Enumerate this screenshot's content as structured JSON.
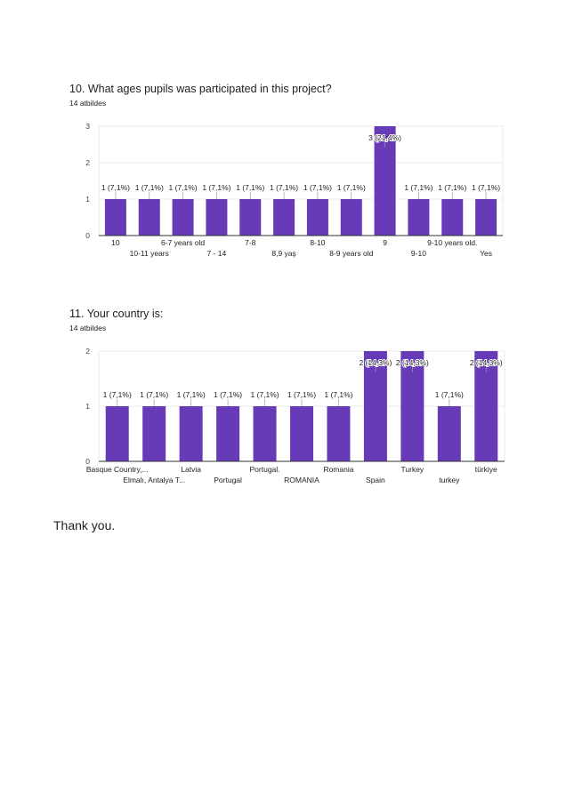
{
  "questions": [
    {
      "title": "10. What ages pupils was participated in this project?",
      "subtitle": "14 atbildes"
    },
    {
      "title": "11. Your country is:",
      "subtitle": "14 atbildes"
    }
  ],
  "footer": {
    "text": "Thank you."
  },
  "colors": {
    "bar": "#673ab7",
    "grid": "#ebebeb",
    "axis": "#333333"
  },
  "chart_data": [
    {
      "type": "bar",
      "categories": [
        "10",
        "10-11 years",
        "6-7 years old",
        "7 - 14",
        "7-8",
        "8,9 yaş",
        "8-10",
        "8-9 years old",
        "9",
        "9-10",
        "9-10 years old.",
        "Yes"
      ],
      "values": [
        1,
        1,
        1,
        1,
        1,
        1,
        1,
        1,
        3,
        1,
        1,
        1
      ],
      "data_labels": [
        "1 (7,1%)",
        "1 (7,1%)",
        "1 (7,1%)",
        "1 (7,1%)",
        "1 (7,1%)",
        "1 (7,1%)",
        "1 (7,1%)",
        "1 (7,1%)",
        "3 (21,4%)",
        "1 (7,1%)",
        "1 (7,1%)",
        "1 (7,1%)"
      ],
      "yticks": [
        0,
        1,
        2,
        3
      ],
      "ylim": [
        0,
        3
      ],
      "grid": true
    },
    {
      "type": "bar",
      "categories": [
        "Basque Country,...",
        "Elmalı, Antalya T...",
        "Latvia",
        "Portugal",
        "Portugal.",
        "ROMANIA",
        "Romania",
        "Spain",
        "Turkey",
        "turkey",
        "türkiye"
      ],
      "values": [
        1,
        1,
        1,
        1,
        1,
        1,
        1,
        2,
        2,
        1,
        2
      ],
      "data_labels": [
        "1 (7,1%)",
        "1 (7,1%)",
        "1 (7,1%)",
        "1 (7,1%)",
        "1 (7,1%)",
        "1 (7,1%)",
        "1 (7,1%)",
        "2 (14,3%)",
        "2 (14,3%)",
        "1 (7,1%)",
        "2 (14,3%)"
      ],
      "yticks": [
        0,
        1,
        2
      ],
      "ylim": [
        0,
        2
      ],
      "grid": true
    }
  ]
}
